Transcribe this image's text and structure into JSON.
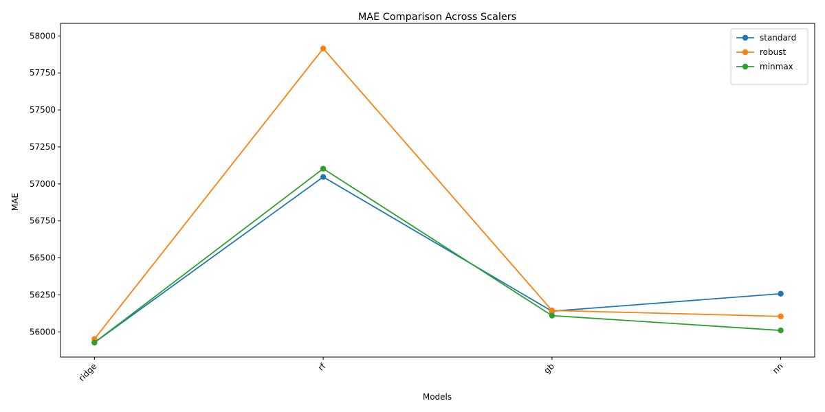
{
  "chart_data": {
    "type": "line",
    "title": "MAE Comparison Across Scalers",
    "xlabel": "Models",
    "ylabel": "MAE",
    "categories": [
      "ridge",
      "rf",
      "gb",
      "nn"
    ],
    "yticks": [
      56000,
      56250,
      56500,
      56750,
      57000,
      57250,
      57500,
      57750,
      58000
    ],
    "ylim": [
      55830,
      58085
    ],
    "grid": false,
    "legend_position": "top-right",
    "series": [
      {
        "name": "standard",
        "color": "#1f77b4",
        "marker": "circle",
        "values": [
          55928,
          57047,
          56140,
          56258
        ]
      },
      {
        "name": "robust",
        "color": "#ff7f0e",
        "marker": "circle",
        "values": [
          55952,
          57915,
          56145,
          56105
        ]
      },
      {
        "name": "minmax",
        "color": "#2ca02c",
        "marker": "circle",
        "values": [
          55928,
          57103,
          56110,
          56010
        ]
      }
    ]
  }
}
